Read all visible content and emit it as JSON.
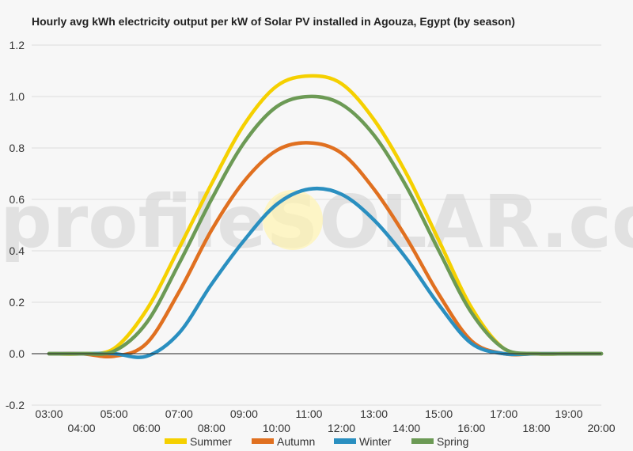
{
  "chart_data": {
    "type": "line",
    "title": "Hourly avg kWh electricity output per kW of Solar PV installed in Agouza, Egypt (by season)",
    "xlabel": "",
    "ylabel": "",
    "ylim": [
      -0.2,
      1.2
    ],
    "yticks": [
      "-0.2",
      "0.0",
      "0.2",
      "0.4",
      "0.6",
      "0.8",
      "1.0",
      "1.2"
    ],
    "ytick_values": [
      -0.2,
      0.0,
      0.2,
      0.4,
      0.6,
      0.8,
      1.0,
      1.2
    ],
    "categories": [
      "03:00",
      "04:00",
      "05:00",
      "06:00",
      "07:00",
      "08:00",
      "09:00",
      "10:00",
      "11:00",
      "12:00",
      "13:00",
      "14:00",
      "15:00",
      "16:00",
      "17:00",
      "18:00",
      "19:00",
      "20:00"
    ],
    "grid": true,
    "legend_position": "bottom",
    "watermark": "profileSOLAR.com",
    "series": [
      {
        "name": "Summer",
        "color": "#f5d000",
        "values": [
          0.0,
          0.0,
          0.02,
          0.17,
          0.41,
          0.66,
          0.89,
          1.04,
          1.08,
          1.05,
          0.91,
          0.7,
          0.44,
          0.18,
          0.02,
          0.0,
          0.0,
          0.0
        ]
      },
      {
        "name": "Autumn",
        "color": "#e07020",
        "values": [
          0.0,
          0.0,
          -0.01,
          0.04,
          0.24,
          0.48,
          0.67,
          0.79,
          0.82,
          0.78,
          0.64,
          0.45,
          0.23,
          0.05,
          0.0,
          0.0,
          0.0,
          0.0
        ]
      },
      {
        "name": "Winter",
        "color": "#2a8fc0",
        "values": [
          0.0,
          0.0,
          0.0,
          -0.01,
          0.08,
          0.27,
          0.44,
          0.58,
          0.64,
          0.62,
          0.52,
          0.37,
          0.19,
          0.04,
          0.0,
          0.0,
          0.0,
          0.0
        ]
      },
      {
        "name": "Spring",
        "color": "#6c9a55",
        "values": [
          0.0,
          0.0,
          0.01,
          0.12,
          0.35,
          0.6,
          0.82,
          0.96,
          1.0,
          0.97,
          0.85,
          0.65,
          0.4,
          0.16,
          0.02,
          0.0,
          0.0,
          0.0
        ]
      }
    ]
  }
}
